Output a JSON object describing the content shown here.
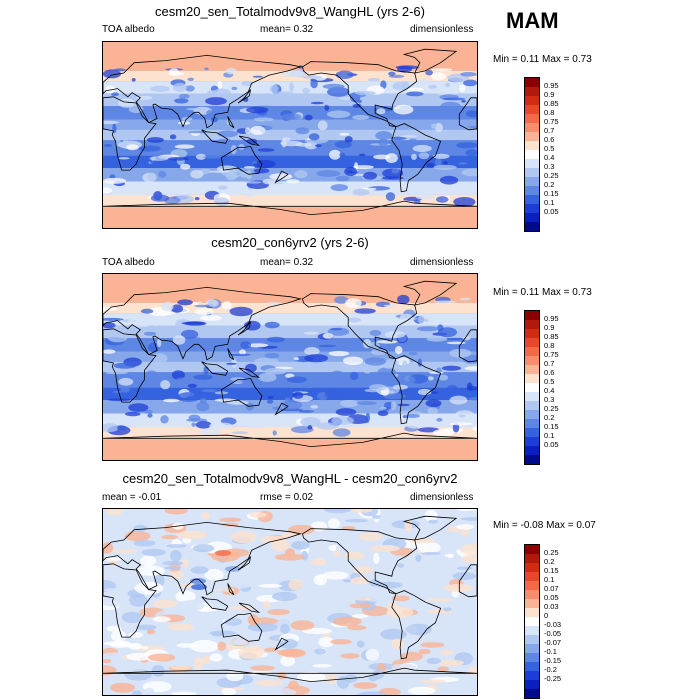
{
  "season": "MAM",
  "panels": [
    {
      "title": "cesm20_sen_Totalmodv9v8_WangHL (yrs 2-6)",
      "left_label": "TOA albedo",
      "center_label": "mean=   0.32",
      "right_label": "dimensionless",
      "minmax": "Min =   0.11 Max =   0.73",
      "kind": "albedo",
      "variant": 1,
      "colorbar": {
        "labels": [
          "0.95",
          "0.9",
          "0.85",
          "0.8",
          "0.75",
          "0.7",
          "0.6",
          "0.5",
          "0.4",
          "0.3",
          "0.25",
          "0.2",
          "0.15",
          "0.1",
          "0.05"
        ],
        "colors": [
          "#8b0000",
          "#b01a0c",
          "#d02c14",
          "#e8482a",
          "#f26a47",
          "#f78d6c",
          "#fab495",
          "#fde2d0",
          "#ffffff",
          "#d8e4f7",
          "#b0c8f1",
          "#86a8ea",
          "#5e86e4",
          "#3562df",
          "#1d3ed6",
          "#0a1fbf",
          "#000a8c"
        ]
      }
    },
    {
      "title": "cesm20_con6yrv2 (yrs 2-6)",
      "left_label": "TOA albedo",
      "center_label": "mean=   0.32",
      "right_label": "dimensionless",
      "minmax": "Min =   0.11 Max =   0.73",
      "kind": "albedo",
      "variant": 2,
      "colorbar": {
        "labels": [
          "0.95",
          "0.9",
          "0.85",
          "0.8",
          "0.75",
          "0.7",
          "0.6",
          "0.5",
          "0.4",
          "0.3",
          "0.25",
          "0.2",
          "0.15",
          "0.1",
          "0.05"
        ],
        "colors": [
          "#8b0000",
          "#b01a0c",
          "#d02c14",
          "#e8482a",
          "#f26a47",
          "#f78d6c",
          "#fab495",
          "#fde2d0",
          "#ffffff",
          "#d8e4f7",
          "#b0c8f1",
          "#86a8ea",
          "#5e86e4",
          "#3562df",
          "#1d3ed6",
          "#0a1fbf",
          "#000a8c"
        ]
      }
    },
    {
      "title": "cesm20_sen_Totalmodv9v8_WangHL - cesm20_con6yrv2",
      "left_label": "mean =  -0.01",
      "center_label": "rmse =   0.02",
      "right_label": "dimensionless",
      "minmax": "Min =  -0.08 Max =   0.07",
      "kind": "diff",
      "variant": 3,
      "colorbar": {
        "labels": [
          "0.25",
          "0.2",
          "0.15",
          "0.1",
          "0.07",
          "0.05",
          "0.03",
          "0",
          "-0.03",
          "-0.05",
          "-0.07",
          "-0.1",
          "-0.15",
          "-0.2",
          "-0.25"
        ],
        "colors": [
          "#8b0000",
          "#b01a0c",
          "#d02c14",
          "#e8482a",
          "#f26a47",
          "#f78d6c",
          "#fab495",
          "#fde2d0",
          "#ffffff",
          "#d8e4f7",
          "#b0c8f1",
          "#86a8ea",
          "#5e86e4",
          "#3562df",
          "#1d3ed6",
          "#0a1fbf",
          "#000a8c"
        ]
      }
    }
  ]
}
